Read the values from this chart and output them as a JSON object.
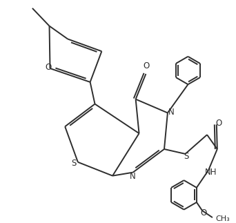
{
  "background_color": "#ffffff",
  "line_color": "#2d2d2d",
  "line_width": 1.4,
  "font_size": 8.5,
  "figsize": [
    3.42,
    3.23
  ],
  "dpi": 100,
  "xlim": [
    0,
    10
  ],
  "ylim": [
    0,
    9.5
  ]
}
